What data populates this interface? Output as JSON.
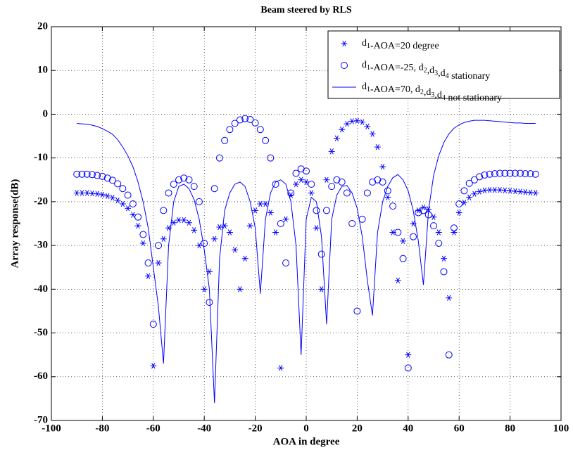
{
  "chart_data": {
    "type": "line",
    "title": "Beam steered by RLS",
    "x_label": "AOA in degree",
    "y_label": "Array response(dB)",
    "xlim": [
      -100,
      100
    ],
    "ylim": [
      -70,
      20
    ],
    "xticks": [
      -100,
      -80,
      -60,
      -40,
      -20,
      0,
      20,
      40,
      60,
      80,
      100
    ],
    "yticks": [
      -70,
      -60,
      -50,
      -40,
      -30,
      -20,
      -10,
      0,
      10,
      20
    ],
    "grid": true,
    "legend": "top-right",
    "x": [
      -90,
      -88,
      -86,
      -84,
      -82,
      -80,
      -78,
      -76,
      -74,
      -72,
      -70,
      -68,
      -66,
      -64,
      -62,
      -60,
      -58,
      -56,
      -54,
      -52,
      -50,
      -48,
      -46,
      -44,
      -42,
      -40,
      -38,
      -36,
      -34,
      -32,
      -30,
      -28,
      -26,
      -24,
      -22,
      -20,
      -18,
      -16,
      -14,
      -12,
      -10,
      -8,
      -6,
      -4,
      -2,
      0,
      2,
      4,
      6,
      8,
      10,
      12,
      14,
      16,
      18,
      20,
      22,
      24,
      26,
      28,
      30,
      32,
      34,
      36,
      38,
      40,
      42,
      44,
      46,
      48,
      50,
      52,
      54,
      56,
      58,
      60,
      62,
      64,
      66,
      68,
      70,
      72,
      74,
      76,
      78,
      80,
      82,
      84,
      86,
      88,
      90
    ],
    "series": [
      {
        "name": "d1-AOA=20 degree",
        "color": "#0000ff",
        "marker": "star",
        "values": [
          -18,
          -18,
          -18,
          -18.1,
          -18.2,
          -18.4,
          -18.7,
          -19.1,
          -19.7,
          -20.5,
          -21.5,
          -23,
          -25.5,
          -29.5,
          -37,
          -57.5,
          -34,
          -28.5,
          -26,
          -24.8,
          -24.2,
          -24.2,
          -24.8,
          -26.5,
          -30,
          -40,
          -36,
          -28.5,
          -25.8,
          -25.5,
          -27,
          -31,
          -40,
          -33,
          -25.5,
          -22,
          -20.5,
          -20.5,
          -22.5,
          -27,
          -58,
          -24,
          -18.5,
          -16,
          -15,
          -15.5,
          -18,
          -26,
          -40,
          -15,
          -8.5,
          -5.5,
          -3.5,
          -2.2,
          -1.6,
          -1.5,
          -1.8,
          -2.8,
          -4.5,
          -7.5,
          -12,
          -19,
          -27,
          -38,
          -29,
          -55,
          -25,
          -22,
          -21.3,
          -21.7,
          -23.5,
          -27,
          -33,
          -42,
          -27,
          -22.5,
          -20.2,
          -19,
          -18.2,
          -17.7,
          -17.4,
          -17.3,
          -17.3,
          -17.3,
          -17.4,
          -17.5,
          -17.6,
          -17.7,
          -17.8,
          -17.9,
          -18
        ]
      },
      {
        "name": "d1-AOA=-25, d2,d3,d4 stationary",
        "color": "#0000ff",
        "marker": "circle",
        "values": [
          -13.7,
          -13.7,
          -13.7,
          -13.8,
          -14,
          -14.2,
          -14.6,
          -15.1,
          -15.9,
          -17,
          -18.5,
          -20.5,
          -23.5,
          -27.5,
          -34,
          -48,
          -30,
          -22,
          -18,
          -16,
          -15,
          -14.6,
          -15,
          -16.5,
          -20,
          -29.5,
          -43,
          -17,
          -10,
          -6,
          -3.5,
          -2.1,
          -1.3,
          -1,
          -1.2,
          -2,
          -3.5,
          -6,
          -10,
          -16,
          -25,
          -34,
          -18,
          -13.5,
          -12.5,
          -13,
          -16,
          -22,
          -32,
          -22,
          -16.5,
          -15,
          -15.5,
          -18,
          -25,
          -45,
          -24,
          -18,
          -15.5,
          -15,
          -15.5,
          -17.5,
          -21,
          -27,
          -33,
          -58,
          -28,
          -22.5,
          -22,
          -23,
          -25.5,
          -29.5,
          -36,
          -55,
          -26,
          -20.5,
          -17.5,
          -15.8,
          -15,
          -14.3,
          -13.9,
          -13.7,
          -13.6,
          -13.5,
          -13.5,
          -13.5,
          -13.5,
          -13.5,
          -13.6,
          -13.6,
          -13.7
        ]
      },
      {
        "name": "d1-AOA=70, d2,d3,d4 not stationary",
        "color": "#0000ff",
        "marker": "line",
        "values": [
          -2.1,
          -2.2,
          -2.3,
          -2.5,
          -2.8,
          -3.3,
          -3.9,
          -4.6,
          -5.8,
          -7.5,
          -9.5,
          -12,
          -15.5,
          -20,
          -26,
          -35,
          -44,
          -57,
          -30,
          -20,
          -16.5,
          -16,
          -17,
          -19.5,
          -24,
          -31,
          -40,
          -66,
          -33,
          -22,
          -18,
          -16,
          -15.5,
          -16.5,
          -20,
          -26,
          -41,
          -24,
          -18,
          -15.5,
          -15,
          -16,
          -20,
          -30,
          -55,
          -24,
          -19,
          -20,
          -28,
          -48,
          -24,
          -18.5,
          -16.5,
          -16.3,
          -18,
          -21.5,
          -28,
          -38,
          -46,
          -27,
          -20,
          -16.5,
          -14.5,
          -13.8,
          -15,
          -17.5,
          -22,
          -29,
          -39,
          -22,
          -14,
          -9.5,
          -6.5,
          -4.5,
          -3.2,
          -2.4,
          -1.9,
          -1.6,
          -1.4,
          -1.4,
          -1.4,
          -1.5,
          -1.6,
          -1.7,
          -1.8,
          -1.9,
          -2,
          -2,
          -2.1,
          -2.1,
          -2.1
        ]
      }
    ]
  }
}
